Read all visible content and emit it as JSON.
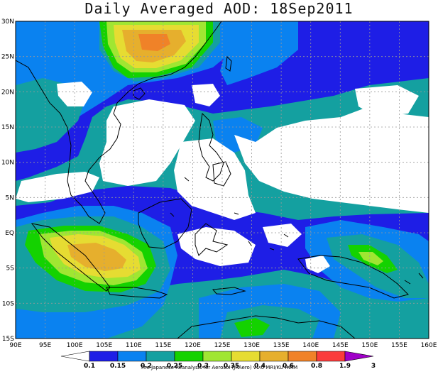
{
  "title": "Daily Averaged AOD: 18Sep2011",
  "credit": "The Japanese Reanalysis for Aerosol (JRAero) v1.0 MRI/KU RIAM",
  "map": {
    "lon_range": [
      90,
      160
    ],
    "lat_range": [
      -15,
      30
    ],
    "lon_ticks": [
      "90E",
      "95E",
      "100E",
      "105E",
      "110E",
      "115E",
      "120E",
      "125E",
      "130E",
      "135E",
      "140E",
      "145E",
      "150E",
      "155E",
      "160E"
    ],
    "lat_ticks": [
      "30N",
      "25N",
      "20N",
      "15N",
      "10N",
      "5N",
      "EQ",
      "5S",
      "10S",
      "15S"
    ]
  },
  "colorbar": {
    "labels": [
      "0.1",
      "0.15",
      "0.2",
      "0.25",
      "0.3",
      "0.35",
      "0.4",
      "0.6",
      "0.8",
      "1.9",
      "3"
    ],
    "colors": [
      "#ffffff",
      "#1e1ee6",
      "#0a82f0",
      "#14a0a0",
      "#14d200",
      "#a0e632",
      "#e6dc32",
      "#e6af2d",
      "#f08228",
      "#fa3c3c",
      "#a000c8"
    ]
  }
}
